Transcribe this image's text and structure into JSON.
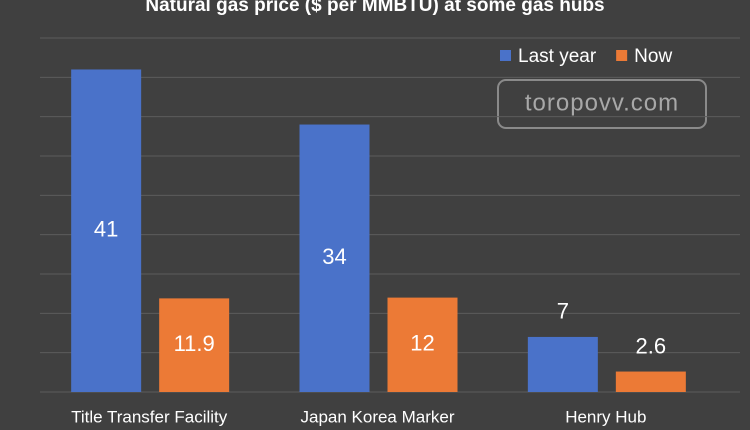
{
  "chart_data": {
    "type": "bar",
    "title": "Natural gas price ($ per MMBTU) at some gas hubs",
    "watermark": "toropovv.com",
    "categories": [
      "Title Transfer Facility",
      "Japan Korea Marker",
      "Henry Hub"
    ],
    "series": [
      {
        "name": "Last year",
        "color": "#4a72c9",
        "values": [
          41,
          34,
          7
        ]
      },
      {
        "name": "Now",
        "color": "#ec7a36",
        "values": [
          11.9,
          12,
          2.6
        ]
      }
    ],
    "ylim": [
      0,
      45
    ],
    "yticks": [
      0,
      5,
      10,
      15,
      20,
      25,
      30,
      35,
      40,
      45
    ],
    "grid": true,
    "show_y_tick_labels": false,
    "legend": "top-right"
  }
}
